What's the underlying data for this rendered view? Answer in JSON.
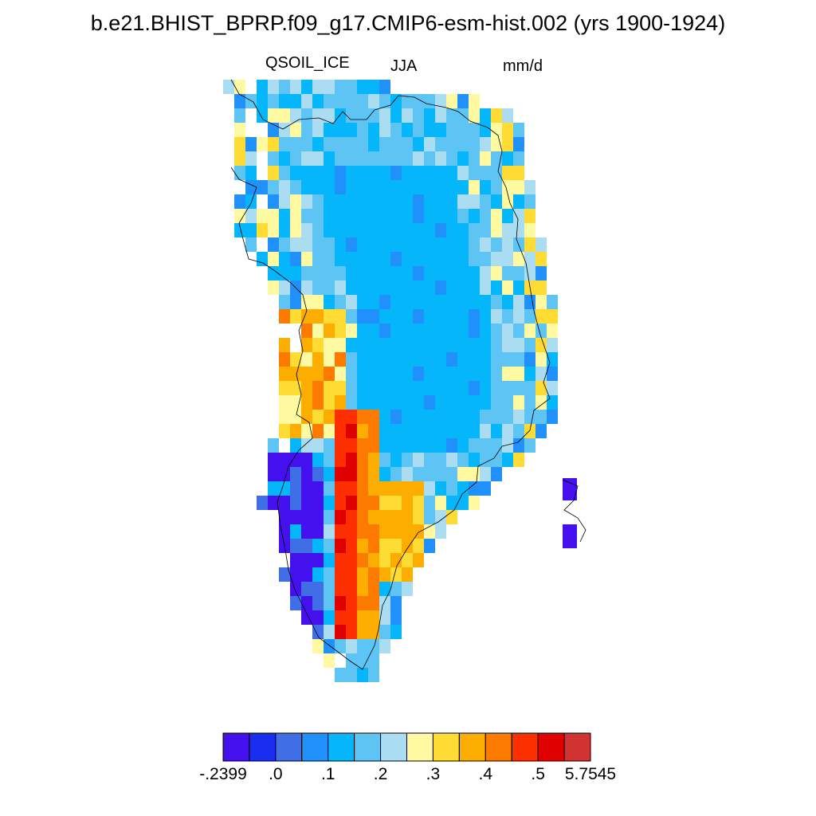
{
  "title": "b.e21.BHIST_BPRP.f09_g17.CMIP6-esm-hist.002 (yrs 1900-1924)",
  "variable": "QSOIL_ICE",
  "season": "JJA",
  "units": "mm/d",
  "colorbar": {
    "colors": [
      "#4410ee",
      "#1a2ef0",
      "#3f6ee6",
      "#2090fa",
      "#06b6fb",
      "#5ec4f4",
      "#aadcf2",
      "#fffaa2",
      "#fedc34",
      "#fdad00",
      "#fd7a00",
      "#fd2e00",
      "#e10000",
      "#d13232"
    ],
    "tick_labels": [
      "-.2399",
      ".0",
      ".1",
      ".2",
      ".3",
      ".4",
      ".5",
      "5.7545"
    ]
  }
}
